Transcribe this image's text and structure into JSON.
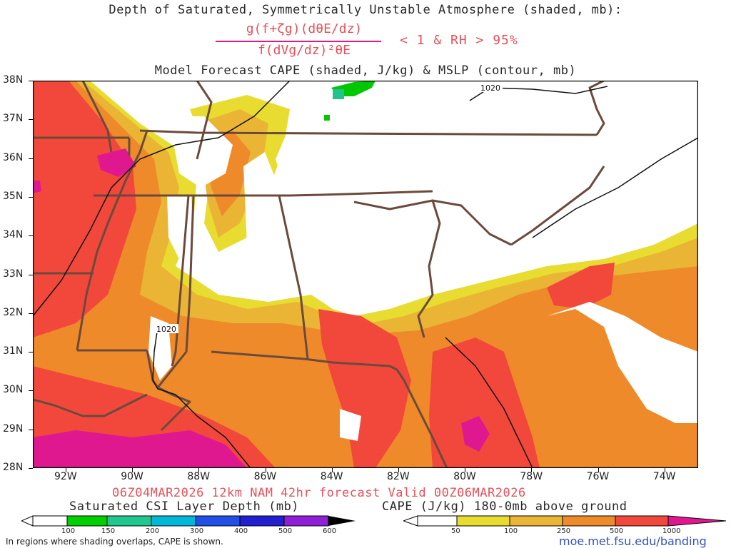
{
  "header": {
    "line1": "Depth of Saturated, Symmetrically Unstable Atmosphere (shaded, mb):",
    "numerator": "g(f+ζg)(dθE/dz)",
    "denominator": "f(dVg/dz)²θE",
    "condition": "< 1 & RH > 95%",
    "line3": "Model Forecast CAPE (shaded, J/kg) & MSLP (contour, mb)"
  },
  "map": {
    "lat_labels": [
      "38N",
      "37N",
      "36N",
      "35N",
      "34N",
      "33N",
      "32N",
      "31N",
      "30N",
      "29N",
      "28N"
    ],
    "lon_labels": [
      "92W",
      "90W",
      "88W",
      "86W",
      "84W",
      "82W",
      "80W",
      "78W",
      "76W",
      "74W"
    ],
    "contour_labels": [
      "1020",
      "1020"
    ],
    "colors": {
      "cape_50": "#e8dc30",
      "cape_100": "#eab534",
      "cape_250": "#ee8a2a",
      "cape_500": "#f2483c",
      "cape_1000": "#e01890",
      "csi_100": "#00c800",
      "csi_150": "#20c48c",
      "border": "#6b4a3c"
    }
  },
  "footer": {
    "valid_line": "06Z04MAR2026 12km NAM 42hr forecast Valid 00Z06MAR2026",
    "csi_title": "Saturated CSI Layer Depth (mb)",
    "cape_title": "CAPE (J/kg) 180-0mb above ground",
    "csi_ticks": [
      "100",
      "150",
      "200",
      "300",
      "400",
      "500",
      "600"
    ],
    "cape_ticks": [
      "50",
      "100",
      "250",
      "500",
      "1000"
    ],
    "note": "In regions where shading overlaps, CAPE is shown.",
    "url": "moe.met.fsu.edu/banding"
  }
}
